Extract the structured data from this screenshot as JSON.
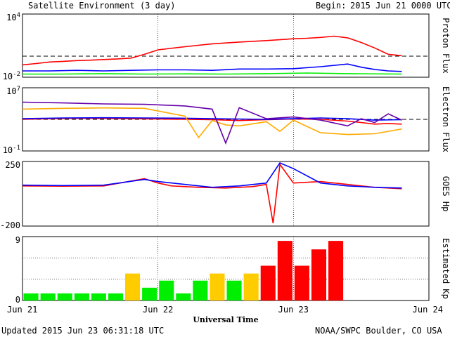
{
  "header": {
    "title": "Satellite Environment (3 day)",
    "begin_label": "Begin:",
    "begin_value": "2015 Jun 21 0000 UTC"
  },
  "footer": {
    "updated": "Updated 2015 Jun 23 06:31:18 UTC",
    "credit": "NOAA/SWPC Boulder, CO USA"
  },
  "colors": {
    "red": "#ff0000",
    "blue": "#0000ff",
    "green": "#00ee00",
    "orange": "#ffaa00",
    "purple": "#6600aa",
    "yellow": "#ffcc00"
  },
  "chart_data": [
    {
      "type": "line",
      "panel": "proton",
      "ylabel": "Proton Flux",
      "yscale": "log",
      "ylim": [
        0.01,
        10000
      ],
      "ytick_labels": [
        "10^4",
        "10^-2"
      ],
      "reference_line": 1,
      "x_days": [
        0,
        3.0
      ],
      "series": [
        {
          "color": "#ff0000",
          "x": [
            0,
            0.1,
            0.2,
            0.3,
            0.4,
            0.5,
            0.6,
            0.7,
            0.8,
            0.9,
            1.0,
            1.2,
            1.4,
            1.6,
            1.8,
            2.0,
            2.1,
            2.2,
            2.3,
            2.4,
            2.5,
            2.6,
            2.7,
            2.75,
            2.8
          ],
          "values": [
            0.15,
            0.2,
            0.28,
            0.32,
            0.38,
            0.42,
            0.48,
            0.55,
            0.65,
            1.5,
            4,
            8,
            15,
            22,
            30,
            45,
            50,
            60,
            80,
            55,
            20,
            6,
            1.5,
            1.3,
            1.1
          ]
        },
        {
          "color": "#0000ff",
          "x": [
            0,
            0.2,
            0.4,
            0.6,
            0.8,
            1.0,
            1.2,
            1.4,
            1.6,
            1.8,
            2.0,
            2.2,
            2.4,
            2.5,
            2.6,
            2.7,
            2.8
          ],
          "values": [
            0.04,
            0.04,
            0.045,
            0.04,
            0.045,
            0.05,
            0.05,
            0.045,
            0.06,
            0.06,
            0.065,
            0.1,
            0.18,
            0.09,
            0.055,
            0.04,
            0.035
          ]
        },
        {
          "color": "#00ee00",
          "x": [
            0,
            0.3,
            0.6,
            0.9,
            1.2,
            1.5,
            1.8,
            2.1,
            2.4,
            2.8
          ],
          "values": [
            0.02,
            0.02,
            0.022,
            0.02,
            0.021,
            0.02,
            0.022,
            0.025,
            0.022,
            0.02
          ]
        }
      ]
    },
    {
      "type": "line",
      "panel": "electron",
      "ylabel": "Electron Flux",
      "yscale": "log",
      "ylim": [
        0.1,
        10000000
      ],
      "ytick_labels": [
        "10^7",
        "10^-1"
      ],
      "reference_line": 1000,
      "series": [
        {
          "color": "#ff0000",
          "x": [
            0,
            0.2,
            0.4,
            0.6,
            0.8,
            1.0,
            1.2,
            1.4,
            1.6,
            1.8,
            2.0,
            2.2,
            2.4,
            2.5,
            2.6,
            2.7,
            2.8
          ],
          "values": [
            1000,
            1200,
            1400,
            1300,
            1200,
            1100,
            1000,
            900,
            700,
            900,
            1100,
            1000,
            600,
            400,
            250,
            300,
            250
          ]
        },
        {
          "color": "#0000ff",
          "x": [
            0,
            0.3,
            0.6,
            0.9,
            1.2,
            1.4,
            1.6,
            1.8,
            2.0,
            2.2,
            2.4,
            2.6,
            2.8
          ],
          "values": [
            1200,
            1500,
            1600,
            1500,
            1400,
            1200,
            1100,
            1000,
            1200,
            1500,
            1200,
            800,
            900
          ]
        },
        {
          "color": "#ffaa00",
          "x": [
            0,
            0.3,
            0.6,
            0.9,
            1.2,
            1.3,
            1.4,
            1.5,
            1.6,
            1.8,
            1.9,
            2.0,
            2.2,
            2.4,
            2.6,
            2.8
          ],
          "values": [
            20000,
            25000,
            28000,
            25000,
            2500,
            5,
            700,
            200,
            150,
            500,
            30,
            800,
            20,
            12,
            15,
            60
          ]
        },
        {
          "color": "#6600aa",
          "x": [
            0,
            0.3,
            0.6,
            0.9,
            1.2,
            1.4,
            1.5,
            1.6,
            1.8,
            2.0,
            2.2,
            2.4,
            2.5,
            2.6,
            2.7,
            2.8
          ],
          "values": [
            150000,
            120000,
            90000,
            80000,
            50000,
            20000,
            1,
            30000,
            1200,
            2000,
            800,
            150,
            1200,
            400,
            5000,
            800
          ]
        }
      ]
    },
    {
      "type": "line",
      "panel": "goes_hp",
      "ylabel": "GOES Hp",
      "ylim": [
        -200,
        250
      ],
      "ytick_labels": [
        "250",
        "-200"
      ],
      "series": [
        {
          "color": "#ff0000",
          "x": [
            0,
            0.3,
            0.6,
            0.9,
            1.0,
            1.1,
            1.3,
            1.5,
            1.7,
            1.8,
            1.85,
            1.9,
            2.0,
            2.2,
            2.4,
            2.6,
            2.8
          ],
          "values": [
            80,
            78,
            80,
            130,
            100,
            80,
            70,
            65,
            75,
            90,
            -180,
            230,
            100,
            110,
            90,
            70,
            60
          ]
        },
        {
          "color": "#0000ff",
          "x": [
            0,
            0.3,
            0.6,
            0.9,
            1.0,
            1.2,
            1.4,
            1.6,
            1.8,
            1.9,
            2.0,
            2.2,
            2.4,
            2.6,
            2.8
          ],
          "values": [
            85,
            82,
            85,
            125,
            110,
            90,
            70,
            80,
            100,
            240,
            200,
            100,
            80,
            70,
            65
          ]
        }
      ]
    },
    {
      "type": "bar",
      "panel": "kp",
      "ylabel": "Estimated Kp",
      "ylim": [
        0,
        9
      ],
      "ytick_labels": [
        "9",
        "0"
      ],
      "bar_hours": 3,
      "x_start_day": 0,
      "values": [
        1,
        1,
        1,
        1,
        1,
        1,
        3.8,
        1.8,
        2.8,
        1,
        2.8,
        3.8,
        2.8,
        3.8,
        4.9,
        8.4,
        4.9,
        7.2,
        8.4
      ],
      "threshold_colors": {
        "green": "kp<4",
        "yellow": "kp==4",
        "red": "kp>=5"
      },
      "xaxis_ticks": [
        "Jun 21",
        "Jun 22",
        "Jun 23",
        "Jun 24"
      ],
      "xlabel": "Universal Time"
    }
  ]
}
